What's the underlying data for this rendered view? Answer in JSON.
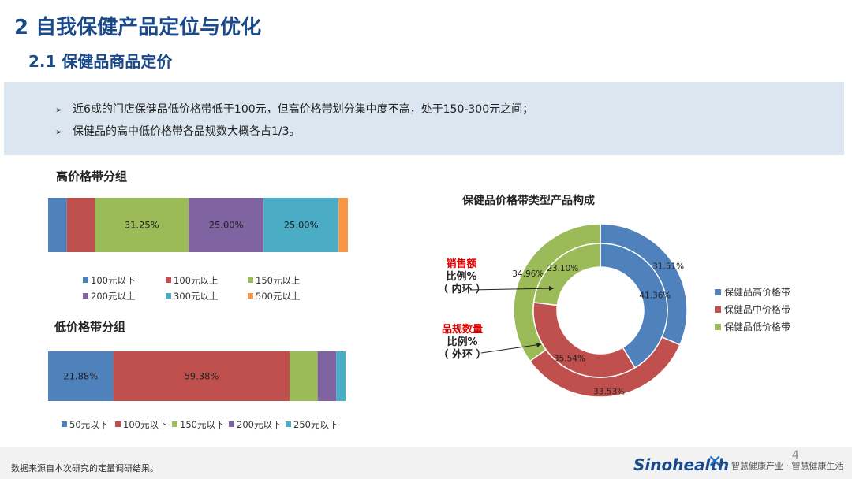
{
  "header": {
    "title": "2 自我保健产品定位与优化",
    "subtitle": "2.1 保健品商品定价"
  },
  "summary": {
    "bullet_icon": "arrow-bullet-icon",
    "bullets": [
      "近6成的门店保健品低价格带低于100元，但高价格带划分集中度不高，处于150-300元之间；",
      "保健品的高中低价格带各品规数大概各占1/3。"
    ]
  },
  "chart_data": [
    {
      "type": "bar",
      "orientation": "horizontal-stacked-100",
      "title": "高价格带分组",
      "series": [
        {
          "name": "100元以下",
          "value": 6.25,
          "color": "#4f81bd",
          "label": ""
        },
        {
          "name": "100元以上",
          "value": 9.375,
          "color": "#c0504d",
          "label": ""
        },
        {
          "name": "150元以上",
          "value": 31.25,
          "color": "#9bbb59",
          "label": "31.25%"
        },
        {
          "name": "200元以上",
          "value": 25.0,
          "color": "#8064a2",
          "label": "25.00%"
        },
        {
          "name": "300元以上",
          "value": 25.0,
          "color": "#4bacc6",
          "label": "25.00%"
        },
        {
          "name": "500元以上",
          "value": 3.125,
          "color": "#f79646",
          "label": ""
        }
      ]
    },
    {
      "type": "bar",
      "orientation": "horizontal-stacked-100",
      "title": "低价格带分组",
      "series": [
        {
          "name": "50元以下",
          "value": 21.88,
          "color": "#4f81bd",
          "label": "21.88%"
        },
        {
          "name": "100元以下",
          "value": 59.38,
          "color": "#c0504d",
          "label": "59.38%"
        },
        {
          "name": "150元以下",
          "value": 9.375,
          "color": "#9bbb59",
          "label": ""
        },
        {
          "name": "200元以下",
          "value": 6.25,
          "color": "#8064a2",
          "label": ""
        },
        {
          "name": "250元以下",
          "value": 3.125,
          "color": "#4bacc6",
          "label": ""
        }
      ]
    },
    {
      "type": "pie",
      "variant": "double-donut",
      "title": "保健品价格带类型产品构成",
      "categories": [
        "保健品高价格带",
        "保健品中价格带",
        "保健品低价格带"
      ],
      "colors": [
        "#4f81bd",
        "#c0504d",
        "#9bbb59"
      ],
      "series": [
        {
          "name": "销售额比例%（内环）",
          "ring": "inner",
          "values": [
            41.36,
            35.54,
            23.1
          ],
          "labels": [
            "41.36%",
            "35.54%",
            "23.10%"
          ]
        },
        {
          "name": "品规数量比例%（外环）",
          "ring": "outer",
          "values": [
            31.51,
            33.53,
            34.96
          ],
          "labels": [
            "31.51%",
            "33.53%",
            "34.96%"
          ]
        }
      ],
      "callouts": {
        "inner": {
          "red": "销售额",
          "line2": "比例%",
          "line3": "（ 内环 ）"
        },
        "outer": {
          "red": "品规数量",
          "line2": "比例%",
          "line3": "（ 外环 ）"
        }
      }
    }
  ],
  "footer": {
    "note": "数据来源自本次研究的定量调研结果。",
    "brand": "Sinohealth",
    "tagline": "智慧健康产业 · 智慧健康生活",
    "page": "4"
  }
}
